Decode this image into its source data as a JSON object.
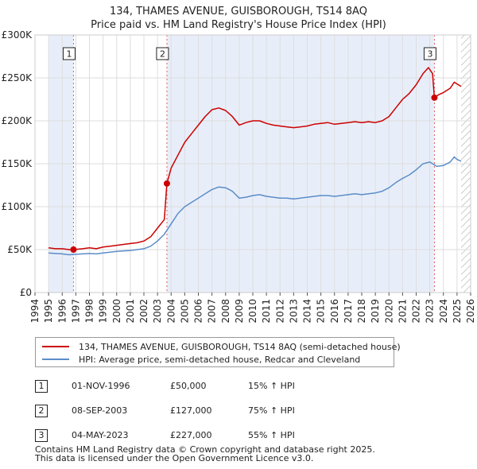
{
  "chart_data": {
    "type": "line",
    "title": "134, THAMES AVENUE, GUISBOROUGH, TS14 8AQ",
    "subtitle": "Price paid vs. HM Land Registry's House Price Index (HPI)",
    "xlabel": "",
    "ylabel": "",
    "xlim": [
      1994,
      2026
    ],
    "ylim": [
      0,
      300000
    ],
    "x_ticks": [
      "1994",
      "1995",
      "1996",
      "1997",
      "1998",
      "1999",
      "2000",
      "2001",
      "2002",
      "2003",
      "2004",
      "2005",
      "2006",
      "2007",
      "2008",
      "2009",
      "2010",
      "2011",
      "2012",
      "2013",
      "2014",
      "2015",
      "2016",
      "2017",
      "2018",
      "2019",
      "2020",
      "2021",
      "2022",
      "2023",
      "2024",
      "2025",
      "2026"
    ],
    "y_ticks": [
      {
        "value": 0,
        "label": "£0"
      },
      {
        "value": 50000,
        "label": "£50K"
      },
      {
        "value": 100000,
        "label": "£100K"
      },
      {
        "value": 150000,
        "label": "£150K"
      },
      {
        "value": 200000,
        "label": "£200K"
      },
      {
        "value": 250000,
        "label": "£250K"
      },
      {
        "value": 300000,
        "label": "£300K"
      }
    ],
    "data_range": [
      1995.0,
      2025.3
    ],
    "series": [
      {
        "name": "134, THAMES AVENUE, GUISBOROUGH, TS14 8AQ (semi-detached house)",
        "color": "#cc0000",
        "points": [
          [
            1995.0,
            52000
          ],
          [
            1995.5,
            51000
          ],
          [
            1996.0,
            51000
          ],
          [
            1996.5,
            50000
          ],
          [
            1996.83,
            50000
          ],
          [
            1997.5,
            51000
          ],
          [
            1998.0,
            52000
          ],
          [
            1998.5,
            51000
          ],
          [
            1999.0,
            53000
          ],
          [
            1999.5,
            54000
          ],
          [
            2000.0,
            55000
          ],
          [
            2000.5,
            56000
          ],
          [
            2001.0,
            57000
          ],
          [
            2001.5,
            58000
          ],
          [
            2002.0,
            60000
          ],
          [
            2002.5,
            65000
          ],
          [
            2003.0,
            75000
          ],
          [
            2003.5,
            85000
          ],
          [
            2003.69,
            127000
          ],
          [
            2004.0,
            145000
          ],
          [
            2004.5,
            160000
          ],
          [
            2005.0,
            175000
          ],
          [
            2005.5,
            185000
          ],
          [
            2006.0,
            195000
          ],
          [
            2006.5,
            205000
          ],
          [
            2007.0,
            213000
          ],
          [
            2007.5,
            215000
          ],
          [
            2008.0,
            212000
          ],
          [
            2008.5,
            205000
          ],
          [
            2009.0,
            195000
          ],
          [
            2009.5,
            198000
          ],
          [
            2010.0,
            200000
          ],
          [
            2010.5,
            200000
          ],
          [
            2011.0,
            197000
          ],
          [
            2011.5,
            195000
          ],
          [
            2012.0,
            194000
          ],
          [
            2012.5,
            193000
          ],
          [
            2013.0,
            192000
          ],
          [
            2013.5,
            193000
          ],
          [
            2014.0,
            194000
          ],
          [
            2014.5,
            196000
          ],
          [
            2015.0,
            197000
          ],
          [
            2015.5,
            198000
          ],
          [
            2016.0,
            196000
          ],
          [
            2016.5,
            197000
          ],
          [
            2017.0,
            198000
          ],
          [
            2017.5,
            199000
          ],
          [
            2018.0,
            198000
          ],
          [
            2018.5,
            199000
          ],
          [
            2019.0,
            198000
          ],
          [
            2019.5,
            200000
          ],
          [
            2020.0,
            205000
          ],
          [
            2020.5,
            215000
          ],
          [
            2021.0,
            225000
          ],
          [
            2021.5,
            232000
          ],
          [
            2022.0,
            242000
          ],
          [
            2022.5,
            255000
          ],
          [
            2022.9,
            262000
          ],
          [
            2023.2,
            255000
          ],
          [
            2023.34,
            227000
          ],
          [
            2023.6,
            230000
          ],
          [
            2024.0,
            233000
          ],
          [
            2024.5,
            238000
          ],
          [
            2024.8,
            245000
          ],
          [
            2025.0,
            243000
          ],
          [
            2025.3,
            240000
          ]
        ]
      },
      {
        "name": "HPI: Average price, semi-detached house, Redcar and Cleveland",
        "color": "#5b8dc9",
        "points": [
          [
            1995.0,
            46000
          ],
          [
            1995.5,
            45500
          ],
          [
            1996.0,
            45000
          ],
          [
            1996.5,
            44000
          ],
          [
            1997.0,
            44500
          ],
          [
            1997.5,
            45000
          ],
          [
            1998.0,
            45500
          ],
          [
            1998.5,
            45000
          ],
          [
            1999.0,
            46000
          ],
          [
            1999.5,
            47000
          ],
          [
            2000.0,
            48000
          ],
          [
            2000.5,
            48500
          ],
          [
            2001.0,
            49000
          ],
          [
            2001.5,
            50000
          ],
          [
            2002.0,
            51000
          ],
          [
            2002.5,
            54000
          ],
          [
            2003.0,
            60000
          ],
          [
            2003.5,
            68000
          ],
          [
            2004.0,
            80000
          ],
          [
            2004.5,
            92000
          ],
          [
            2005.0,
            100000
          ],
          [
            2005.5,
            105000
          ],
          [
            2006.0,
            110000
          ],
          [
            2006.5,
            115000
          ],
          [
            2007.0,
            120000
          ],
          [
            2007.5,
            123000
          ],
          [
            2008.0,
            122000
          ],
          [
            2008.5,
            118000
          ],
          [
            2009.0,
            110000
          ],
          [
            2009.5,
            111000
          ],
          [
            2010.0,
            113000
          ],
          [
            2010.5,
            114000
          ],
          [
            2011.0,
            112000
          ],
          [
            2011.5,
            111000
          ],
          [
            2012.0,
            110000
          ],
          [
            2012.5,
            110000
          ],
          [
            2013.0,
            109000
          ],
          [
            2013.5,
            110000
          ],
          [
            2014.0,
            111000
          ],
          [
            2014.5,
            112000
          ],
          [
            2015.0,
            113000
          ],
          [
            2015.5,
            113000
          ],
          [
            2016.0,
            112000
          ],
          [
            2016.5,
            113000
          ],
          [
            2017.0,
            114000
          ],
          [
            2017.5,
            115000
          ],
          [
            2018.0,
            114000
          ],
          [
            2018.5,
            115000
          ],
          [
            2019.0,
            116000
          ],
          [
            2019.5,
            118000
          ],
          [
            2020.0,
            122000
          ],
          [
            2020.5,
            128000
          ],
          [
            2021.0,
            133000
          ],
          [
            2021.5,
            137000
          ],
          [
            2022.0,
            143000
          ],
          [
            2022.5,
            150000
          ],
          [
            2023.0,
            152000
          ],
          [
            2023.5,
            147000
          ],
          [
            2024.0,
            148000
          ],
          [
            2024.5,
            152000
          ],
          [
            2024.8,
            158000
          ],
          [
            2025.0,
            155000
          ],
          [
            2025.3,
            153000
          ]
        ]
      }
    ],
    "sales": [
      {
        "id": "1",
        "x": 1996.83,
        "value": 50000,
        "date": "01-NOV-1996",
        "price": "£50,000",
        "hpi_change": "15% ↑ HPI"
      },
      {
        "id": "2",
        "x": 2003.69,
        "value": 127000,
        "date": "08-SEP-2003",
        "price": "£127,000",
        "hpi_change": "75% ↑ HPI"
      },
      {
        "id": "3",
        "x": 2023.34,
        "value": 227000,
        "date": "04-MAY-2023",
        "price": "£227,000",
        "hpi_change": "55% ↑ HPI"
      }
    ],
    "shaded_periods": [
      [
        1995.0,
        1996.83
      ],
      [
        2003.69,
        2023.34
      ]
    ],
    "hatched_periods": [
      [
        2025.3,
        2026.0
      ]
    ]
  },
  "legend": {
    "property_label": "134, THAMES AVENUE, GUISBOROUGH, TS14 8AQ (semi-detached house)",
    "hpi_label": "HPI: Average price, semi-detached house, Redcar and Cleveland"
  },
  "footer": {
    "line1": "Contains HM Land Registry data © Crown copyright and database right 2025.",
    "line2": "This data is licensed under the Open Government Licence v3.0."
  },
  "colors": {
    "property": "#cc0000",
    "hpi": "#5b8dc9",
    "shade": "#e8eef9",
    "grid": "#dddddd",
    "vline": "#e06060"
  }
}
